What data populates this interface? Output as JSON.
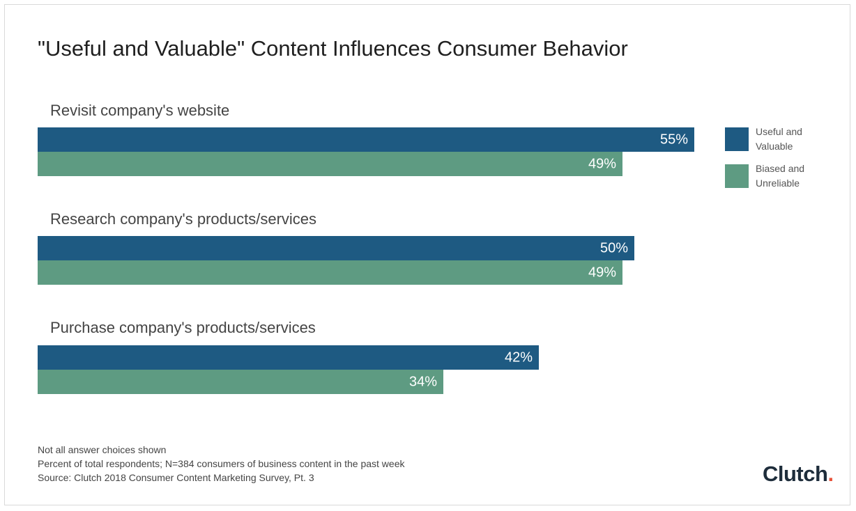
{
  "chart_data": {
    "type": "bar",
    "orientation": "horizontal",
    "title": "\"Useful and Valuable\" Content Influences Consumer Behavior",
    "categories": [
      "Revisit company's website",
      "Research company's products/services",
      "Purchase company's products/services"
    ],
    "series": [
      {
        "name": "Useful and Valuable",
        "values": [
          55,
          50,
          42
        ],
        "labels": [
          "55%",
          "50%",
          "42%"
        ],
        "color": "#1e5a82"
      },
      {
        "name": "Biased and Unreliable",
        "values": [
          49,
          49,
          34
        ],
        "labels": [
          "49%",
          "49%",
          "34%"
        ],
        "color": "#5e9b82"
      }
    ],
    "xlim": [
      0,
      55
    ],
    "grid": false,
    "legend_position": "right"
  },
  "notes": [
    "Not all answer choices shown",
    "Percent of total respondents; N=384 consumers of business content in the past week",
    "Source: Clutch 2018 Consumer Content Marketing Survey, Pt. 3"
  ],
  "logo": {
    "text": "Clutch"
  }
}
